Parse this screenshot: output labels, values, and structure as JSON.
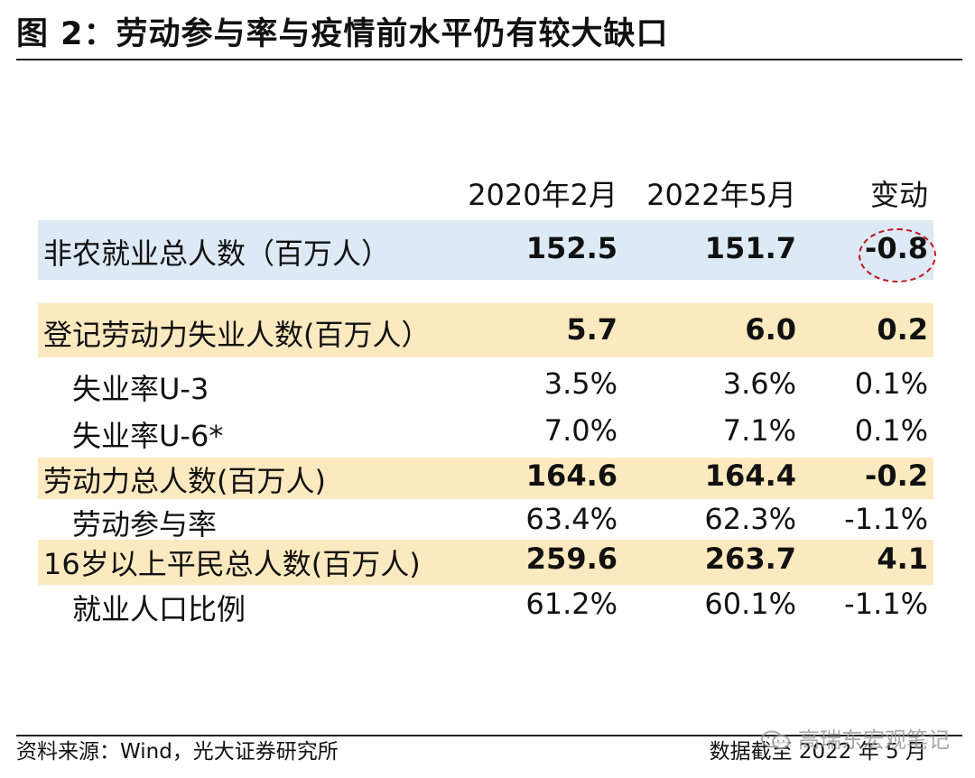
{
  "title": "图 2：劳动参与率与疫情前水平仍有较大缺口",
  "table": {
    "headers": [
      "2020年2月",
      "2022年5月",
      "变动"
    ],
    "rows": [
      {
        "label": "非农就业总人数（百万人）",
        "values": [
          "152.5",
          "151.7",
          "-0.8"
        ],
        "bold": true,
        "band": "blue",
        "indent": false
      },
      {
        "label": "登记劳动力失业人数(百万人）",
        "values": [
          "5.7",
          "6.0",
          "0.2"
        ],
        "bold": true,
        "band": "yellow",
        "indent": false
      },
      {
        "label": "失业率U-3",
        "values": [
          "3.5%",
          "3.6%",
          "0.1%"
        ],
        "bold": false,
        "band": "none",
        "indent": true
      },
      {
        "label": "失业率U-6*",
        "values": [
          "7.0%",
          "7.1%",
          "0.1%"
        ],
        "bold": false,
        "band": "none",
        "indent": true
      },
      {
        "label": "劳动力总人数(百万人)",
        "values": [
          "164.6",
          "164.4",
          "-0.2"
        ],
        "bold": true,
        "band": "yellow",
        "indent": false
      },
      {
        "label": "劳动参与率",
        "values": [
          "63.4%",
          "62.3%",
          "-1.1%"
        ],
        "bold": false,
        "band": "none",
        "indent": true
      },
      {
        "label": "16岁以上平民总人数(百万人)",
        "values": [
          "259.6",
          "263.7",
          "4.1"
        ],
        "bold": true,
        "band": "yellow",
        "indent": false
      },
      {
        "label": "就业人口比例",
        "values": [
          "61.2%",
          "60.1%",
          "-1.1%"
        ],
        "bold": false,
        "band": "none",
        "indent": true
      }
    ],
    "highlight_circle_color": "#c0161e",
    "band_colors": {
      "blue": "#dde9f5",
      "yellow": "#fde9bf"
    }
  },
  "footer": {
    "source": "资料来源：Wind，光大证券研究所",
    "cutoff": "数据截至 2022 年 5 月"
  },
  "watermark": {
    "text": "高瑞东宏观笔记",
    "icon": "wechat-icon"
  }
}
